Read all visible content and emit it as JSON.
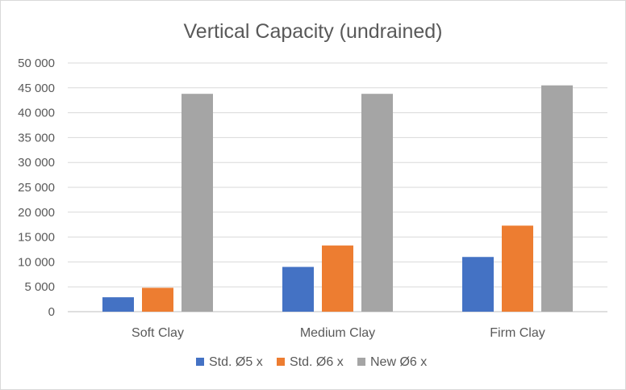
{
  "chart_data": {
    "type": "bar",
    "title": "Vertical Capacity (undrained)",
    "xlabel": "",
    "ylabel": "",
    "categories": [
      "Soft Clay",
      "Medium Clay",
      "Firm Clay"
    ],
    "series": [
      {
        "name": "Std. Ø5 x",
        "color": "#4472c4",
        "values": [
          2900,
          9000,
          11000
        ]
      },
      {
        "name": "Std. Ø6 x",
        "color": "#ed7d31",
        "values": [
          4800,
          13300,
          17300
        ]
      },
      {
        "name": "New Ø6 x",
        "color": "#a5a5a5",
        "values": [
          43800,
          43800,
          45500
        ]
      }
    ],
    "ylim": [
      0,
      50000
    ],
    "yticks": [
      0,
      5000,
      10000,
      15000,
      20000,
      25000,
      30000,
      35000,
      40000,
      45000,
      50000
    ],
    "ytick_labels": [
      "0",
      "5 000",
      "10 000",
      "15 000",
      "20 000",
      "25 000",
      "30 000",
      "35 000",
      "40 000",
      "45 000",
      "50 000"
    ],
    "grid": true,
    "legend_position": "bottom"
  }
}
